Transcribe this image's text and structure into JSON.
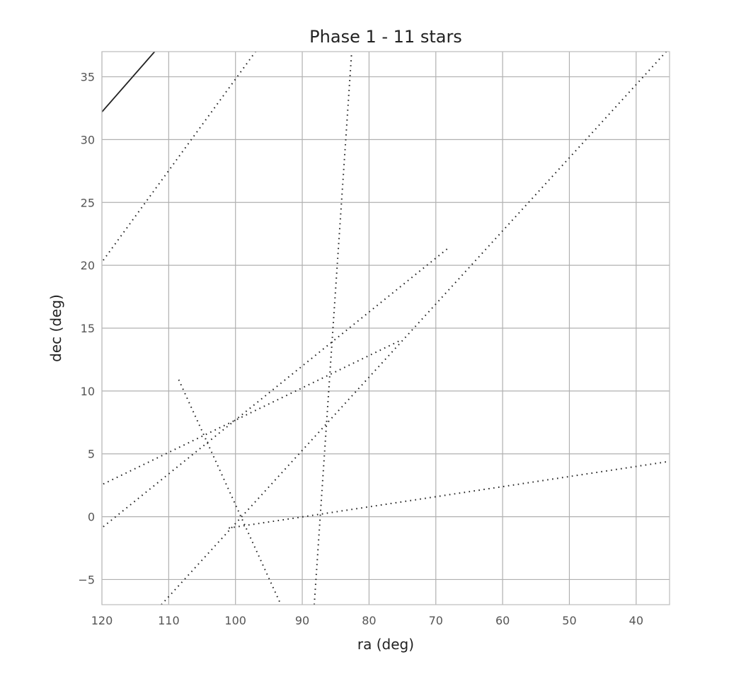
{
  "chart_data": {
    "type": "line",
    "title": "Phase 1 - 11 stars",
    "xlabel": "ra (deg)",
    "ylabel": "dec (deg)",
    "xlim": [
      120,
      35
    ],
    "ylim": [
      -7,
      37
    ],
    "x_ticks": [
      120,
      110,
      100,
      90,
      80,
      70,
      60,
      50,
      40
    ],
    "x_tick_labels": [
      "120",
      "110",
      "100",
      "90",
      "80",
      "70",
      "60",
      "50",
      "40"
    ],
    "y_ticks": [
      -5,
      0,
      5,
      10,
      15,
      20,
      25,
      30,
      35
    ],
    "y_tick_labels": [
      "−5",
      "0",
      "5",
      "10",
      "15",
      "20",
      "25",
      "30",
      "35"
    ],
    "grid": true,
    "x_axis_inverted": true,
    "colors": {
      "grid": "#b0b0b0",
      "spine": "#bcbcbc",
      "series": "#222222"
    },
    "series": [
      {
        "style": "solid",
        "x": [
          120,
          112.1
        ],
        "y": [
          32.2,
          37
        ]
      },
      {
        "style": "dotted",
        "x": [
          119.8,
          97
        ],
        "y": [
          20.4,
          37
        ]
      },
      {
        "style": "dotted",
        "x": [
          88.2,
          82.6
        ],
        "y": [
          -7,
          37
        ]
      },
      {
        "style": "dotted",
        "x": [
          111.1,
          35.5
        ],
        "y": [
          -7,
          37
        ]
      },
      {
        "style": "dotted",
        "x": [
          119.8,
          68.3
        ],
        "y": [
          -0.8,
          21.3
        ]
      },
      {
        "style": "dotted",
        "x": [
          119.8,
          75.4
        ],
        "y": [
          2.6,
          14.0
        ]
      },
      {
        "style": "dotted",
        "x": [
          108.5,
          93.2
        ],
        "y": [
          10.9,
          -7
        ]
      },
      {
        "style": "dotted",
        "x": [
          101,
          35
        ],
        "y": [
          -0.9,
          4.4
        ]
      }
    ]
  }
}
